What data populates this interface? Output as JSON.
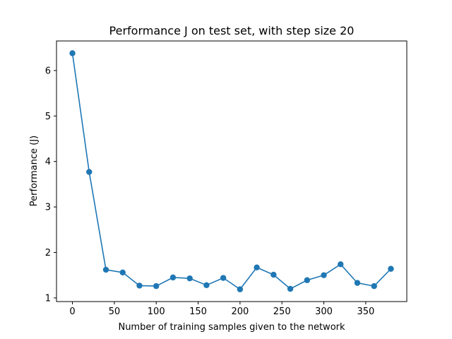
{
  "chart_data": {
    "type": "line",
    "title": "Performance J on test set, with step size 20",
    "xlabel": "Number of training samples given to the network",
    "ylabel": "Performance (J)",
    "xlim": [
      -19,
      399
    ],
    "ylim": [
      0.92,
      6.65
    ],
    "xticks": [
      0,
      50,
      100,
      150,
      200,
      250,
      300,
      350
    ],
    "yticks": [
      1,
      2,
      3,
      4,
      5,
      6
    ],
    "grid": false,
    "series": [
      {
        "color": "#1f77b4",
        "marker": "circle",
        "x": [
          0,
          20,
          40,
          60,
          80,
          100,
          120,
          140,
          160,
          180,
          200,
          220,
          240,
          260,
          280,
          300,
          320,
          340,
          360,
          380
        ],
        "y": [
          6.38,
          3.77,
          1.62,
          1.56,
          1.27,
          1.26,
          1.45,
          1.43,
          1.28,
          1.44,
          1.19,
          1.67,
          1.51,
          1.2,
          1.39,
          1.5,
          1.74,
          1.33,
          1.26,
          1.64
        ]
      }
    ]
  }
}
